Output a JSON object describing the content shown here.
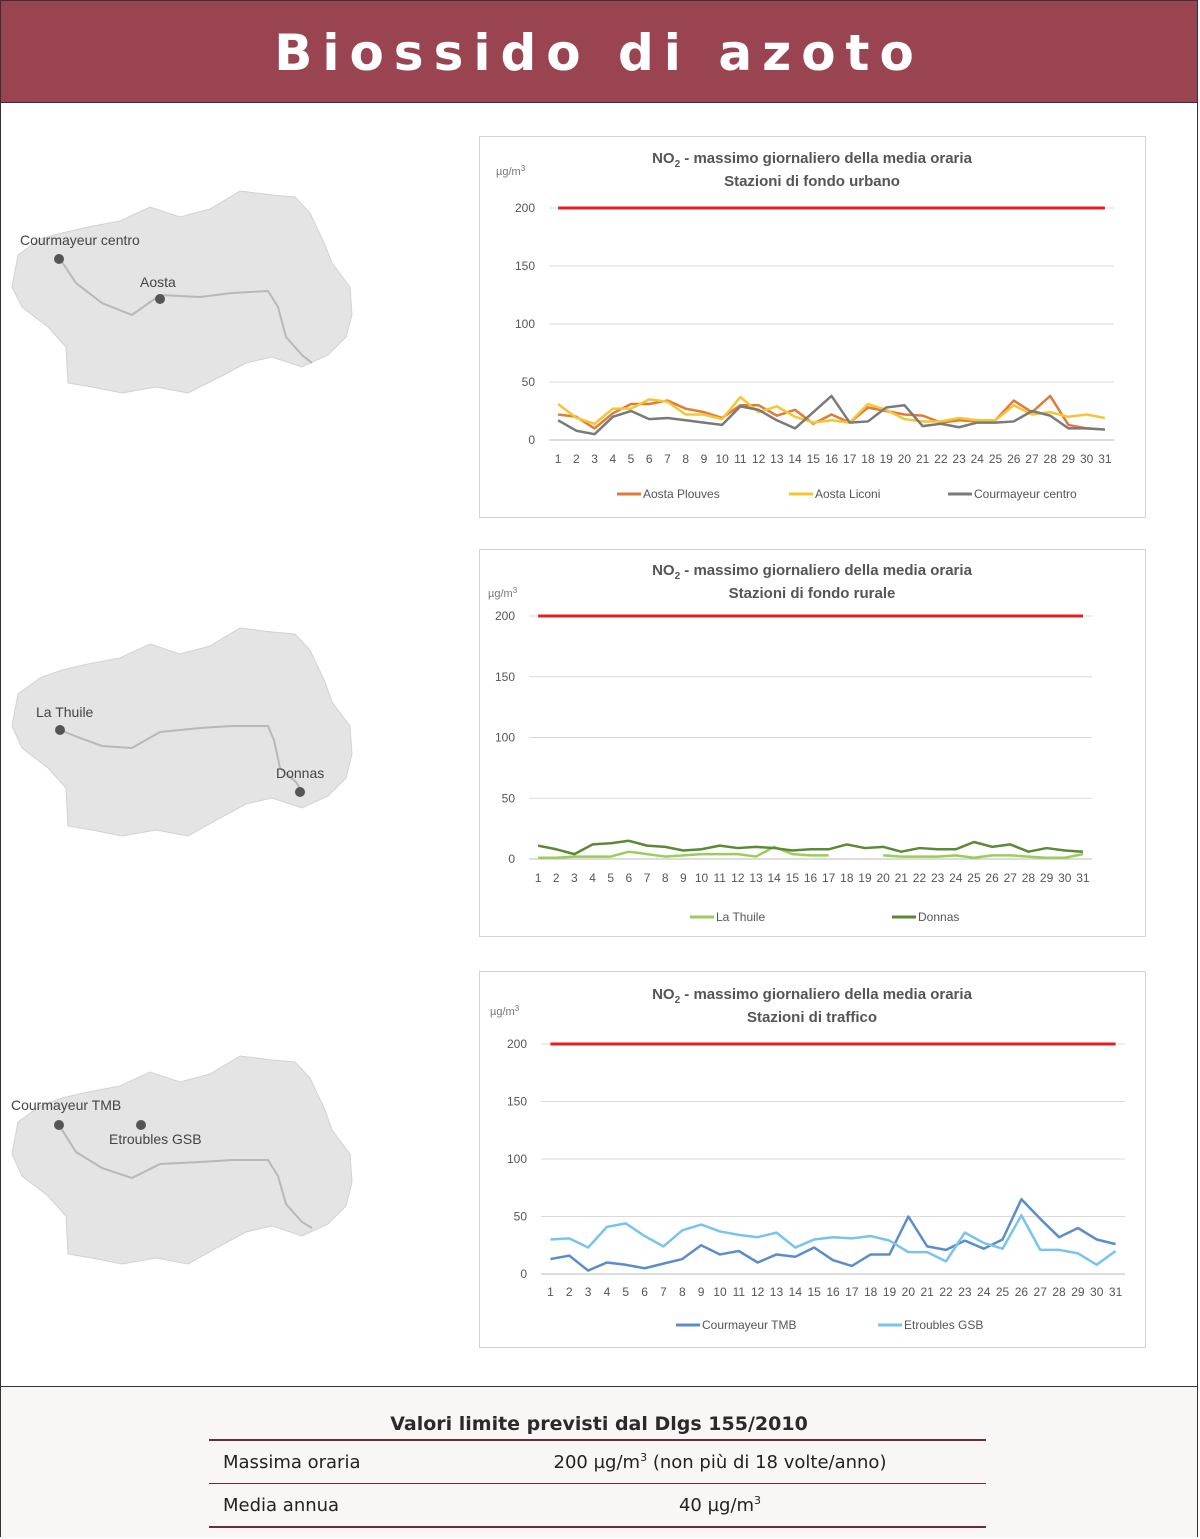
{
  "page_title": "Biossido di azoto",
  "maps": [
    {
      "stations": [
        {
          "name": "Courmayeur centro"
        },
        {
          "name": "Aosta"
        }
      ]
    },
    {
      "stations": [
        {
          "name": "La Thuile"
        },
        {
          "name": "Donnas"
        }
      ]
    },
    {
      "stations": [
        {
          "name": "Courmayeur TMB"
        },
        {
          "name": "Etroubles GSB"
        }
      ]
    }
  ],
  "chart_data": [
    {
      "type": "line",
      "title_prefix": "NO",
      "title_sub": "2",
      "title_line1": " - massimo giornaliero della media oraria",
      "title_line2": "Stazioni di fondo urbano",
      "unit": "µg/m",
      "unit_sup": "3",
      "x": [
        1,
        2,
        3,
        4,
        5,
        6,
        7,
        8,
        9,
        10,
        11,
        12,
        13,
        14,
        15,
        16,
        17,
        18,
        19,
        20,
        21,
        22,
        23,
        24,
        25,
        26,
        27,
        28,
        29,
        30,
        31
      ],
      "ylim": [
        0,
        200
      ],
      "yticks": [
        0,
        50,
        100,
        150,
        200
      ],
      "limit_value": 200,
      "grid": true,
      "legend_position": "bottom",
      "colors": {
        "limit": "#e02020"
      },
      "series": [
        {
          "name": "Aosta Plouves",
          "color": "#e07b39",
          "values": [
            22,
            20,
            10,
            23,
            31,
            31,
            34,
            27,
            24,
            19,
            30,
            30,
            21,
            26,
            14,
            22,
            15,
            28,
            25,
            22,
            21,
            15,
            17,
            16,
            17,
            34,
            24,
            38,
            13,
            10,
            9
          ]
        },
        {
          "name": "Aosta Liconi",
          "color": "#f6c531",
          "values": [
            31,
            19,
            14,
            27,
            27,
            35,
            33,
            22,
            22,
            18,
            37,
            24,
            29,
            20,
            15,
            17,
            15,
            31,
            26,
            18,
            16,
            16,
            19,
            17,
            17,
            30,
            22,
            24,
            20,
            22,
            19
          ]
        },
        {
          "name": "Courmayeur centro",
          "color": "#7a7a7a",
          "values": [
            17,
            8,
            5,
            20,
            25,
            18,
            19,
            17,
            15,
            13,
            29,
            26,
            17,
            10,
            24,
            38,
            15,
            16,
            28,
            30,
            12,
            14,
            11,
            15,
            15,
            16,
            25,
            21,
            10,
            10,
            9
          ]
        }
      ]
    },
    {
      "type": "line",
      "title_prefix": "NO",
      "title_sub": "2",
      "title_line1": " - massimo giornaliero della media oraria",
      "title_line2": "Stazioni di fondo rurale",
      "unit": "µg/m",
      "unit_sup": "3",
      "x": [
        1,
        2,
        3,
        4,
        5,
        6,
        7,
        8,
        9,
        10,
        11,
        12,
        13,
        14,
        15,
        16,
        17,
        18,
        19,
        20,
        21,
        22,
        23,
        24,
        25,
        26,
        27,
        28,
        29,
        30,
        31
      ],
      "ylim": [
        0,
        200
      ],
      "yticks": [
        0,
        50,
        100,
        150,
        200
      ],
      "limit_value": 200,
      "grid": true,
      "legend_position": "bottom",
      "colors": {
        "limit": "#e02020"
      },
      "series": [
        {
          "name": "La Thuile",
          "color": "#9acd5a",
          "values": [
            1,
            1,
            2,
            2,
            2,
            6,
            4,
            2,
            3,
            4,
            4,
            4,
            2,
            10,
            4,
            3,
            3,
            null,
            null,
            3,
            2,
            2,
            2,
            3,
            1,
            3,
            3,
            2,
            1,
            1,
            4
          ]
        },
        {
          "name": "Donnas",
          "color": "#5a8a35",
          "values": [
            11,
            8,
            4,
            12,
            13,
            15,
            11,
            10,
            7,
            8,
            11,
            9,
            10,
            9,
            7,
            8,
            8,
            12,
            9,
            10,
            6,
            9,
            8,
            8,
            14,
            10,
            12,
            6,
            9,
            7,
            6
          ]
        }
      ]
    },
    {
      "type": "line",
      "title_prefix": "NO",
      "title_sub": "2",
      "title_line1": " - massimo giornaliero della media oraria",
      "title_line2": "Stazioni di traffico",
      "unit": "µg/m",
      "unit_sup": "3",
      "x": [
        1,
        2,
        3,
        4,
        5,
        6,
        7,
        8,
        9,
        10,
        11,
        12,
        13,
        14,
        15,
        16,
        17,
        18,
        19,
        20,
        21,
        22,
        23,
        24,
        25,
        26,
        27,
        28,
        29,
        30,
        31
      ],
      "ylim": [
        0,
        200
      ],
      "yticks": [
        0,
        50,
        100,
        150,
        200
      ],
      "limit_value": 200,
      "grid": true,
      "legend_position": "bottom",
      "colors": {
        "limit": "#e02020"
      },
      "series": [
        {
          "name": "Courmayeur TMB",
          "color": "#5b8ec9",
          "values": [
            13,
            16,
            3,
            10,
            8,
            5,
            9,
            13,
            25,
            17,
            20,
            10,
            17,
            15,
            23,
            12,
            7,
            17,
            17,
            50,
            24,
            21,
            29,
            22,
            30,
            65,
            48,
            32,
            40,
            30,
            26
          ]
        },
        {
          "name": "Etroubles GSB",
          "color": "#79c3ef",
          "values": [
            30,
            31,
            23,
            41,
            44,
            33,
            24,
            38,
            43,
            37,
            34,
            32,
            36,
            23,
            30,
            32,
            31,
            33,
            29,
            19,
            19,
            11,
            36,
            27,
            22,
            51,
            21,
            21,
            18,
            8,
            20
          ]
        }
      ]
    }
  ],
  "limits": {
    "title": "Valori limite previsti dal Dlgs 155/2010",
    "rows": [
      {
        "label": "Massima oraria",
        "value_prefix": "200 µg/m",
        "value_sup": "3",
        "value_suffix": " (non più di 18 volte/anno)"
      },
      {
        "label": "Media annua",
        "value_prefix": "40 µg/m",
        "value_sup": "3",
        "value_suffix": ""
      }
    ]
  }
}
